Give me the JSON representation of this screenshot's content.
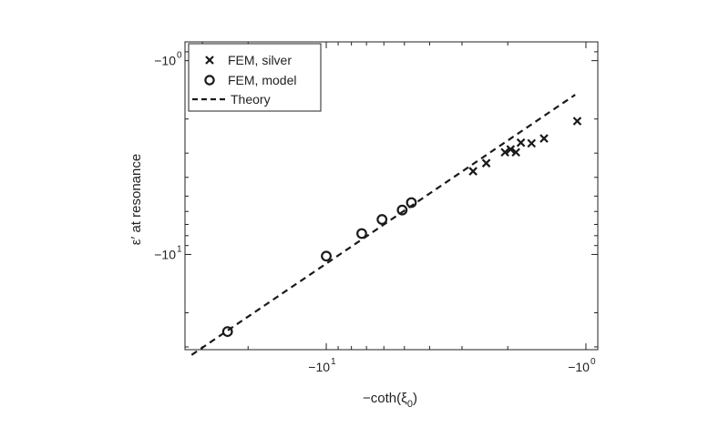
{
  "chart_data": {
    "type": "scatter",
    "xscale": "log",
    "yscale": "log",
    "xlim": [
      -35,
      -0.9
    ],
    "ylim": [
      -31,
      -0.8
    ],
    "xlabel": {
      "main": "−coth(ξ",
      "sub": "0",
      "end": ")"
    },
    "ylabel": "ε′ at resonance",
    "xticks": [
      {
        "value": -10,
        "base": "−10",
        "exp": "1"
      },
      {
        "value": -1,
        "base": "−10",
        "exp": "0"
      }
    ],
    "yticks": [
      {
        "value": -10,
        "base": "−10",
        "exp": "1"
      },
      {
        "value": -1,
        "base": "−10",
        "exp": "0"
      }
    ],
    "legend": {
      "position": "top-left",
      "entries": [
        {
          "label": "FEM, silver",
          "marker": "x"
        },
        {
          "label": "FEM, model",
          "marker": "o"
        },
        {
          "label": "Theory",
          "marker": "dashed-line"
        }
      ]
    },
    "series": [
      {
        "name": "FEM, silver",
        "marker": "x",
        "x": [
          -1.08,
          -1.45,
          -1.62,
          -1.78,
          -1.86,
          -1.95,
          -2.05,
          -2.42,
          -2.72
        ],
        "y": [
          -2.05,
          -2.52,
          -2.67,
          -2.65,
          -2.97,
          -2.87,
          -2.97,
          -3.38,
          -3.72
        ]
      },
      {
        "name": "FEM, model",
        "marker": "o",
        "x": [
          -24.0,
          -10.0,
          -7.3,
          -6.1,
          -5.1,
          -4.7
        ],
        "y": [
          -25.0,
          -10.2,
          -7.8,
          -6.6,
          -5.9,
          -5.4
        ]
      },
      {
        "name": "Theory",
        "marker": "dashed-line",
        "x": [
          -33.0,
          -1.1
        ],
        "y": [
          -33.0,
          -1.5
        ]
      }
    ]
  }
}
